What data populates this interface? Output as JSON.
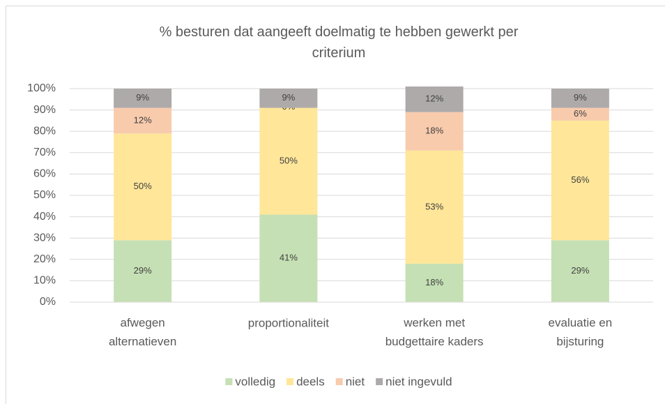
{
  "chart_data": {
    "type": "stacked_bar",
    "title": "% besturen dat aangeeft doelmatig te hebben gewerkt  per\ncriterium",
    "categories": [
      "afwegen\nalternatieven",
      "proportionaliteit",
      "werken met\nbudgettaire kaders",
      "evaluatie en\nbijsturing"
    ],
    "series": [
      {
        "name": "volledig",
        "color": "#c5e0b4",
        "values": [
          29,
          41,
          18,
          29
        ],
        "value_labels": [
          "29%",
          "41%",
          "18%",
          "29%"
        ]
      },
      {
        "name": "deels",
        "color": "#ffe699",
        "values": [
          50,
          50,
          53,
          56
        ],
        "value_labels": [
          "50%",
          "50%",
          "53%",
          "56%"
        ]
      },
      {
        "name": "niet",
        "color": "#f8cbad",
        "values": [
          12,
          0,
          18,
          6
        ],
        "value_labels": [
          "12%",
          "0%",
          "18%",
          "6%"
        ]
      },
      {
        "name": "niet ingevuld",
        "color": "#aeaaaa",
        "values": [
          9,
          9,
          12,
          9
        ],
        "value_labels": [
          "9%",
          "9%",
          "12%",
          "9%"
        ]
      }
    ],
    "ylim": [
      0,
      100
    ],
    "yticks": [
      {
        "value": 0,
        "label": "0%"
      },
      {
        "value": 10,
        "label": "10%"
      },
      {
        "value": 20,
        "label": "20%"
      },
      {
        "value": 30,
        "label": "30%"
      },
      {
        "value": 40,
        "label": "40%"
      },
      {
        "value": 50,
        "label": "50%"
      },
      {
        "value": 60,
        "label": "60%"
      },
      {
        "value": 70,
        "label": "70%"
      },
      {
        "value": 80,
        "label": "80%"
      },
      {
        "value": 90,
        "label": "90%"
      },
      {
        "value": 100,
        "label": "100%"
      }
    ],
    "grid": true,
    "legend": "bottom"
  }
}
